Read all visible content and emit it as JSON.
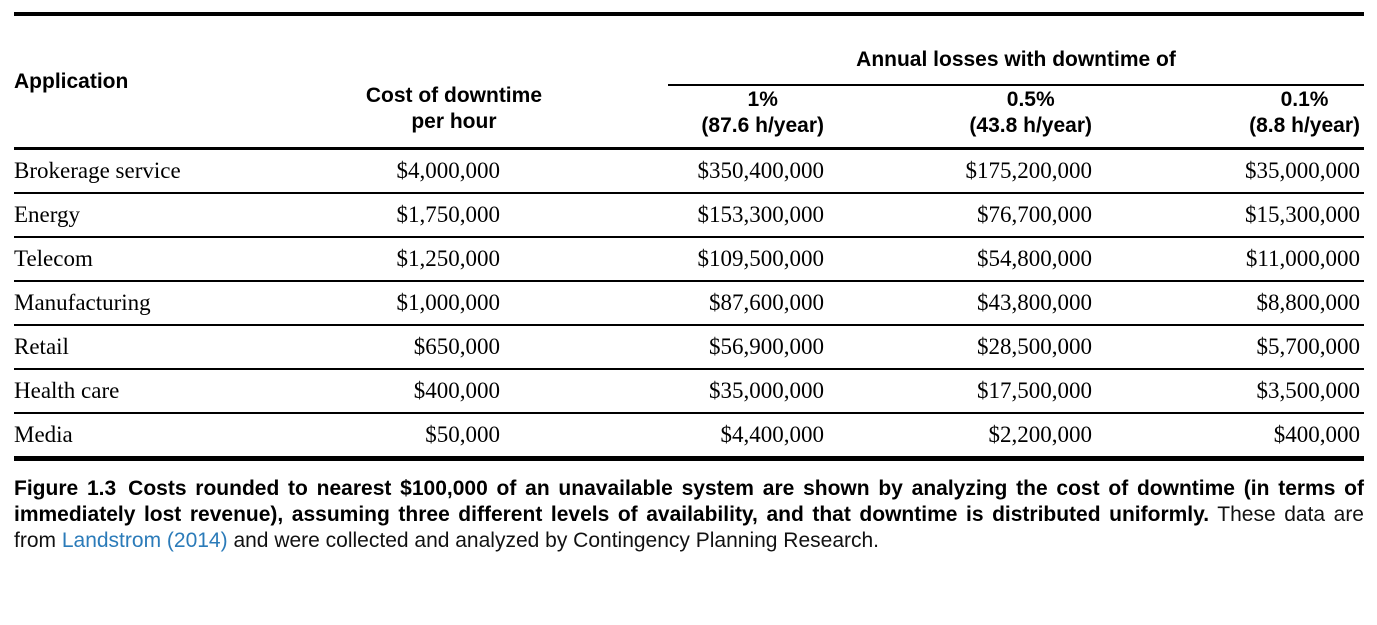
{
  "figure": {
    "table": {
      "group_header": "Annual losses with downtime of",
      "columns": [
        {
          "label": "Application",
          "sub": ""
        },
        {
          "label": "Cost of downtime",
          "sub": "per hour"
        },
        {
          "label": "1%",
          "sub": "(87.6 h/year)"
        },
        {
          "label": "0.5%",
          "sub": "(43.8 h/year)"
        },
        {
          "label": "0.1%",
          "sub": "(8.8 h/year)"
        }
      ],
      "rows": [
        [
          "Brokerage service",
          "$4,000,000",
          "$350,400,000",
          "$175,200,000",
          "$35,000,000"
        ],
        [
          "Energy",
          "$1,750,000",
          "$153,300,000",
          "$76,700,000",
          "$15,300,000"
        ],
        [
          "Telecom",
          "$1,250,000",
          "$109,500,000",
          "$54,800,000",
          "$11,000,000"
        ],
        [
          "Manufacturing",
          "$1,000,000",
          "$87,600,000",
          "$43,800,000",
          "$8,800,000"
        ],
        [
          "Retail",
          "$650,000",
          "$56,900,000",
          "$28,500,000",
          "$5,700,000"
        ],
        [
          "Health care",
          "$400,000",
          "$35,000,000",
          "$17,500,000",
          "$3,500,000"
        ],
        [
          "Media",
          "$50,000",
          "$4,400,000",
          "$2,200,000",
          "$400,000"
        ]
      ]
    },
    "caption": {
      "label": "Figure 1.3",
      "bold_text": "Costs rounded to nearest $100,000 of an unavailable system are shown by analyzing the cost of downtime (in terms of immediately lost revenue), assuming three different levels of availability, and that downtime is distributed uniformly.",
      "text_before_link": " These data are from ",
      "link_text": "Landstrom (2014)",
      "text_after_link": " and were collected and analyzed by Contingency Planning Research."
    },
    "colors": {
      "rule": "#000000",
      "link": "#2b7bb9"
    }
  }
}
